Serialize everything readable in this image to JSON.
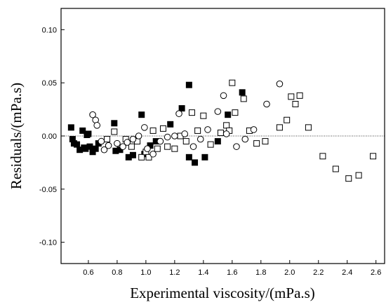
{
  "chart_data": {
    "type": "scatter",
    "x_label": "Experimental viscosity/(mPa.s)",
    "y_label": "Residuals/(mPa.s)",
    "xlim": [
      0.41,
      2.66
    ],
    "ylim": [
      -0.12,
      0.12
    ],
    "xticks": [
      0.6,
      0.8,
      {
        "value": 1.0,
        "label": "1.0"
      },
      1.2,
      1.4,
      1.6,
      1.8,
      {
        "value": 2.0,
        "label": "2.0"
      },
      2.2,
      2.4,
      2.6
    ],
    "yticks": [
      {
        "value": 0.1,
        "label": "0.10"
      },
      {
        "value": 0.05,
        "label": "0.05"
      },
      {
        "value": 0,
        "label": "0.00"
      },
      {
        "value": -0.05,
        "label": "-0.05"
      },
      {
        "value": -0.1,
        "label": "-0.10"
      }
    ],
    "reference_line": 0,
    "series": [
      {
        "marker": "square-filled",
        "color": "#000000",
        "x": [
          0.48,
          0.49,
          0.5,
          0.52,
          0.54,
          0.56,
          0.57,
          0.58,
          0.59,
          0.6,
          0.61,
          0.63,
          0.65,
          0.67,
          0.78,
          0.79,
          0.82,
          0.88,
          0.91,
          0.97,
          0.99,
          1.03,
          1.07,
          1.17,
          1.25,
          1.3,
          1.3,
          1.34,
          1.41,
          1.5,
          1.57,
          1.67
        ],
        "values": [
          0.008,
          -0.003,
          -0.007,
          -0.008,
          -0.013,
          0.005,
          -0.011,
          -0.012,
          0.001,
          0.002,
          -0.01,
          -0.015,
          -0.012,
          -0.007,
          0.012,
          -0.014,
          -0.013,
          -0.02,
          -0.018,
          0.02,
          -0.017,
          -0.009,
          -0.005,
          0.011,
          0.026,
          -0.02,
          0.048,
          -0.025,
          -0.02,
          -0.005,
          0.02,
          0.041
        ]
      },
      {
        "marker": "square-open",
        "color": "#000000",
        "x": [
          0.73,
          0.78,
          0.86,
          0.9,
          0.94,
          0.97,
          1.0,
          1.02,
          1.05,
          1.08,
          1.12,
          1.15,
          1.2,
          1.24,
          1.28,
          1.32,
          1.36,
          1.4,
          1.45,
          1.52,
          1.56,
          1.58,
          1.6,
          1.62,
          1.68,
          1.72,
          1.77,
          1.83,
          1.93,
          1.98,
          2.01,
          2.04,
          2.07,
          2.13,
          2.23,
          2.32,
          2.41,
          2.48,
          2.58
        ],
        "values": [
          -0.003,
          0.004,
          -0.003,
          -0.01,
          -0.005,
          -0.02,
          -0.015,
          -0.02,
          0.005,
          -0.012,
          0.007,
          -0.01,
          -0.012,
          0.0,
          -0.005,
          0.022,
          0.005,
          0.019,
          -0.008,
          0.003,
          0.01,
          0.005,
          0.05,
          0.022,
          0.035,
          0.005,
          -0.007,
          -0.005,
          0.008,
          0.015,
          0.037,
          0.03,
          0.038,
          0.008,
          -0.019,
          -0.031,
          -0.04,
          -0.037,
          -0.019
        ]
      },
      {
        "marker": "circle-open",
        "color": "#000000",
        "x": [
          0.63,
          0.65,
          0.66,
          0.69,
          0.71,
          0.74,
          0.8,
          0.84,
          0.87,
          0.91,
          0.95,
          0.99,
          1.01,
          1.05,
          1.1,
          1.15,
          1.2,
          1.23,
          1.27,
          1.33,
          1.38,
          1.43,
          1.5,
          1.54,
          1.56,
          1.63,
          1.69,
          1.75,
          1.84,
          1.93
        ],
        "values": [
          0.02,
          0.015,
          0.01,
          -0.005,
          -0.013,
          -0.009,
          -0.007,
          -0.01,
          -0.006,
          -0.003,
          0.0,
          0.008,
          -0.012,
          -0.017,
          -0.005,
          -0.001,
          0.0,
          0.021,
          0.002,
          -0.01,
          -0.003,
          0.006,
          0.023,
          0.038,
          0.002,
          -0.01,
          -0.003,
          0.006,
          0.03,
          0.049
        ]
      }
    ]
  }
}
